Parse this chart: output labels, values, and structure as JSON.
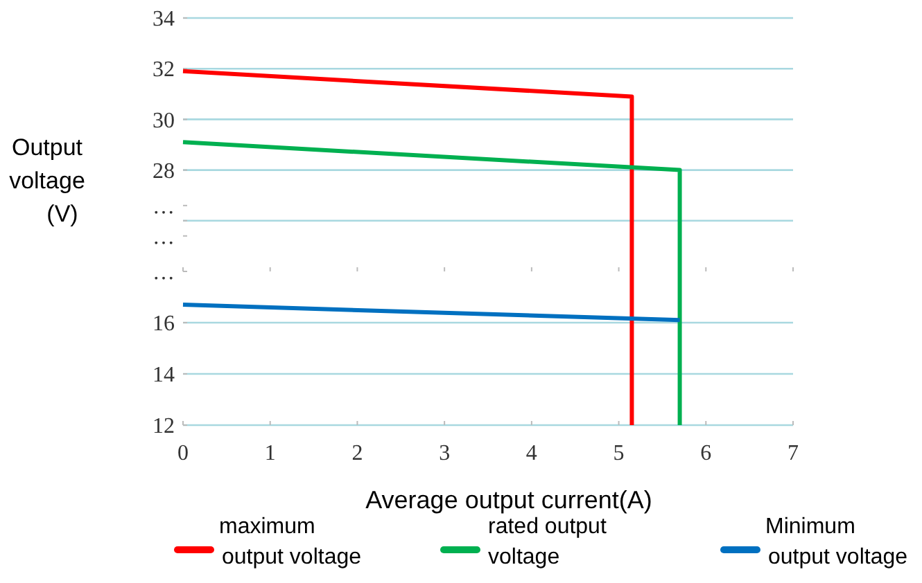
{
  "chart_data": [
    {
      "type": "line",
      "ylabel": "Output voltage (V)",
      "xlim": [
        0,
        7
      ],
      "xticks": [
        0,
        1,
        2,
        3,
        4,
        5,
        6,
        7
      ],
      "tick_labels": "y",
      "ylim": [
        24,
        34
      ],
      "yticks": [
        {
          "value": 25.4,
          "label": "…"
        },
        {
          "value": 26,
          "label": null
        },
        {
          "value": 26.6,
          "label": "…"
        },
        28,
        30,
        32,
        34
      ],
      "grid": "y",
      "marker": "none",
      "line_style": "solid",
      "series": [
        {
          "color": "#ff0000",
          "x": [
            0,
            5.15,
            5.15
          ],
          "values": [
            31.9,
            30.9,
            24
          ]
        },
        {
          "color": "#00b050",
          "x": [
            0,
            5.7,
            5.7
          ],
          "values": [
            29.1,
            28.0,
            24
          ]
        }
      ]
    },
    {
      "type": "line",
      "xlabel": "Average output current(A)",
      "xlim": [
        0,
        7
      ],
      "xticks": [
        0,
        1,
        2,
        3,
        4,
        5,
        6,
        7
      ],
      "ylim": [
        12,
        18
      ],
      "yticks": [
        12,
        14,
        16,
        {
          "value": 18,
          "label": "…"
        }
      ],
      "grid": "y",
      "legend": "bottom",
      "marker": "none",
      "line_style": "solid",
      "series": [
        {
          "name": "maximum output voltage",
          "color": "#ff0000",
          "x": [
            5.15,
            5.15
          ],
          "values": [
            18,
            12
          ]
        },
        {
          "name": "rated output voltage",
          "color": "#00b050",
          "x": [
            5.7,
            5.7
          ],
          "values": [
            18,
            12
          ]
        },
        {
          "name": "Minimum output voltage",
          "color": "#0070c0",
          "x": [
            0,
            5.7
          ],
          "values": [
            16.7,
            16.1
          ]
        }
      ]
    }
  ]
}
